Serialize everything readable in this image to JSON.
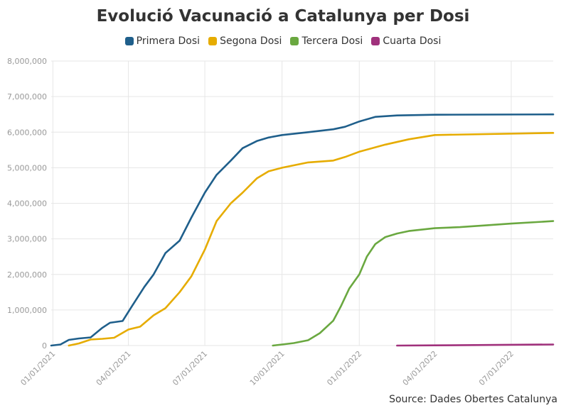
{
  "chart_data": {
    "type": "line",
    "title": "Evolució Vacunació a Catalunya per Dosi",
    "source": "Source: Dades Obertes Catalunya",
    "xlabel": "",
    "ylabel": "",
    "ylim": [
      0,
      8000000
    ],
    "y_ticks": [
      0,
      1000000,
      2000000,
      3000000,
      4000000,
      5000000,
      6000000,
      7000000,
      8000000
    ],
    "y_tick_labels": [
      "0",
      "1,000,000",
      "2,000,000",
      "3,000,000",
      "4,000,000",
      "5,000,000",
      "6,000,000",
      "7,000,000",
      "8,000,000"
    ],
    "x_range": [
      "2020-12-30",
      "2022-08-20"
    ],
    "x_ticks": [
      "2021-01-01",
      "2021-04-01",
      "2021-07-01",
      "2021-10-01",
      "2022-01-01",
      "2022-04-01",
      "2022-07-01"
    ],
    "x_tick_labels": [
      "01/01/2021",
      "04/01/2021",
      "07/01/2021",
      "10/01/2021",
      "01/01/2022",
      "04/01/2022",
      "07/01/2022"
    ],
    "grid": true,
    "legend_position": "top-center",
    "series": [
      {
        "name": "Primera Dosi",
        "color": "#1f5f8b",
        "x": [
          "2020-12-30",
          "2021-01-10",
          "2021-01-20",
          "2021-02-01",
          "2021-02-15",
          "2021-03-01",
          "2021-03-10",
          "2021-03-25",
          "2021-04-05",
          "2021-04-20",
          "2021-05-01",
          "2021-05-15",
          "2021-06-01",
          "2021-06-15",
          "2021-07-01",
          "2021-07-15",
          "2021-08-01",
          "2021-08-15",
          "2021-09-01",
          "2021-09-15",
          "2021-10-01",
          "2021-11-01",
          "2021-12-01",
          "2021-12-15",
          "2022-01-01",
          "2022-01-20",
          "2022-02-15",
          "2022-04-01",
          "2022-08-20"
        ],
        "values": [
          0,
          30000,
          160000,
          200000,
          230000,
          500000,
          640000,
          690000,
          1100000,
          1650000,
          2000000,
          2600000,
          2950000,
          3600000,
          4300000,
          4800000,
          5200000,
          5550000,
          5750000,
          5850000,
          5920000,
          6000000,
          6080000,
          6150000,
          6300000,
          6430000,
          6470000,
          6490000,
          6500000
        ]
      },
      {
        "name": "Segona Dosi",
        "color": "#e6ac00",
        "x": [
          "2021-01-20",
          "2021-02-01",
          "2021-02-15",
          "2021-03-01",
          "2021-03-15",
          "2021-04-01",
          "2021-04-15",
          "2021-05-01",
          "2021-05-15",
          "2021-06-01",
          "2021-06-15",
          "2021-07-01",
          "2021-07-15",
          "2021-08-01",
          "2021-08-15",
          "2021-09-01",
          "2021-09-15",
          "2021-10-01",
          "2021-11-01",
          "2021-12-01",
          "2021-12-15",
          "2022-01-01",
          "2022-02-01",
          "2022-03-01",
          "2022-04-01",
          "2022-08-20"
        ],
        "values": [
          0,
          60000,
          170000,
          190000,
          220000,
          450000,
          530000,
          850000,
          1050000,
          1500000,
          1950000,
          2700000,
          3500000,
          4000000,
          4300000,
          4700000,
          4900000,
          5000000,
          5150000,
          5200000,
          5300000,
          5450000,
          5650000,
          5800000,
          5920000,
          5980000
        ]
      },
      {
        "name": "Tercera Dosi",
        "color": "#6aa840",
        "x": [
          "2021-09-20",
          "2021-10-01",
          "2021-10-15",
          "2021-11-01",
          "2021-11-15",
          "2021-12-01",
          "2021-12-10",
          "2021-12-20",
          "2022-01-01",
          "2022-01-10",
          "2022-01-20",
          "2022-02-01",
          "2022-02-15",
          "2022-03-01",
          "2022-04-01",
          "2022-05-01",
          "2022-06-01",
          "2022-07-01",
          "2022-08-20"
        ],
        "values": [
          0,
          30000,
          70000,
          150000,
          350000,
          700000,
          1100000,
          1600000,
          2000000,
          2500000,
          2850000,
          3050000,
          3150000,
          3220000,
          3300000,
          3330000,
          3380000,
          3430000,
          3500000
        ]
      },
      {
        "name": "Cuarta Dosi",
        "color": "#a0317c",
        "x": [
          "2022-02-15",
          "2022-04-01",
          "2022-06-01",
          "2022-08-20"
        ],
        "values": [
          0,
          5000,
          15000,
          30000
        ]
      }
    ]
  }
}
